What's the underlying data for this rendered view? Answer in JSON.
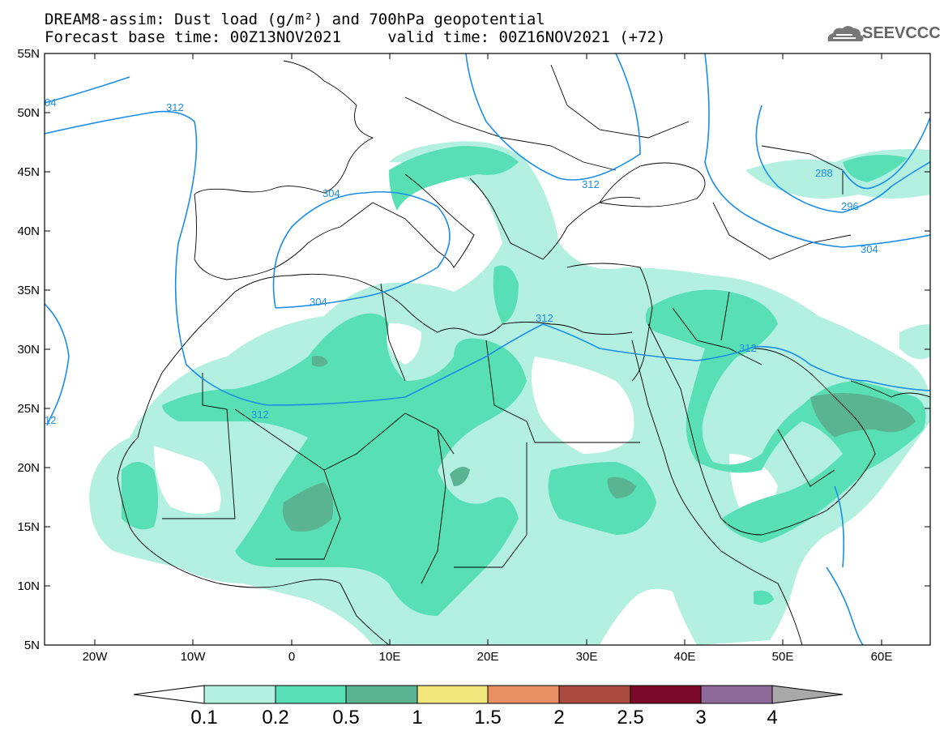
{
  "header": {
    "line1": "DREAM8-assim: Dust load (g/m²) and 700hPa geopotential",
    "line2": "Forecast base time: 00Z13NOV2021     valid time: 00Z16NOV2021 (+72)"
  },
  "logo": {
    "text": "SEEVCCC",
    "icon": "cloud-logo-icon"
  },
  "map": {
    "lat_labels": [
      "55N",
      "50N",
      "45N",
      "40N",
      "35N",
      "30N",
      "25N",
      "20N",
      "15N",
      "10N",
      "5N"
    ],
    "lon_labels": [
      "20W",
      "10W",
      "0",
      "10E",
      "20E",
      "30E",
      "40E",
      "50E",
      "60E"
    ],
    "contour_labels": [
      "04",
      "312",
      "304",
      "304",
      "312",
      "312",
      "312",
      "312",
      "304",
      "288",
      "296",
      "12"
    ]
  },
  "colorbar": {
    "labels": [
      "0.1",
      "0.2",
      "0.5",
      "1",
      "1.5",
      "2",
      "2.5",
      "3",
      "4"
    ],
    "colors": [
      "#ffffff",
      "#b4f0e0",
      "#58e0b4",
      "#5ab494",
      "#f0e67c",
      "#e89064",
      "#aa4a3e",
      "#7c0a2a",
      "#8e6a9a",
      "#a8a8a8"
    ]
  }
}
